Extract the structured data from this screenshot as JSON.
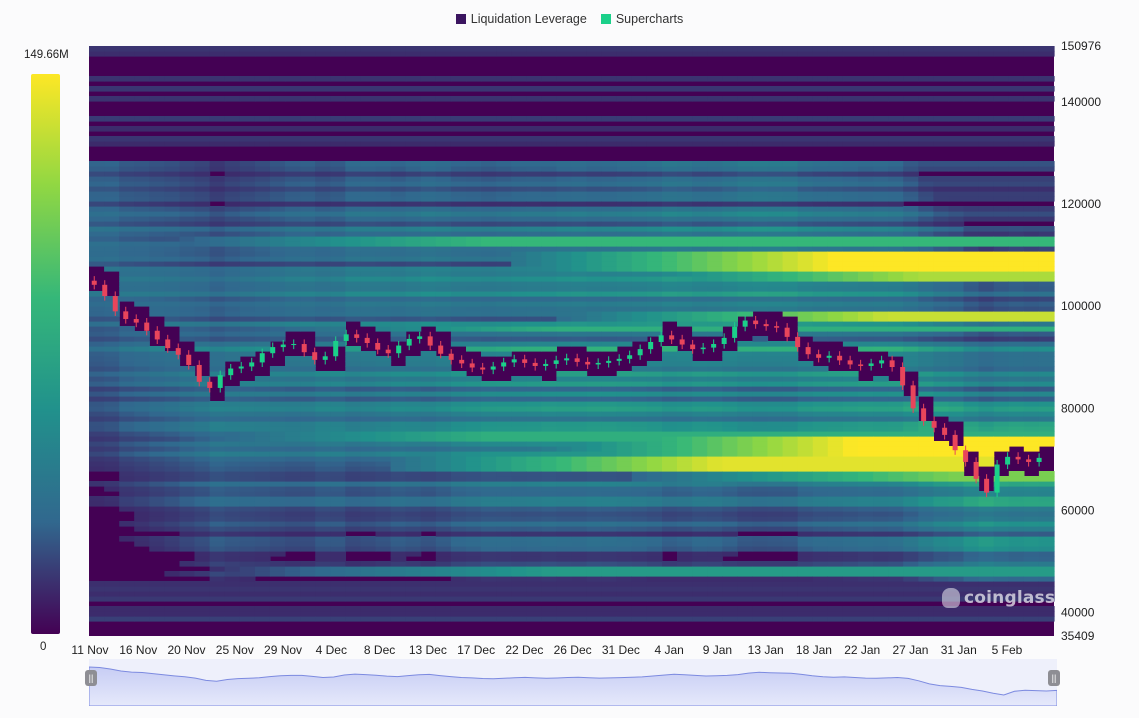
{
  "legend": {
    "items": [
      {
        "label": "Liquidation Leverage",
        "color": "#3b1560"
      },
      {
        "label": "Supercharts",
        "color": "#1bd08a"
      }
    ]
  },
  "colorbar": {
    "max_label": "149.66M",
    "min_label": "0",
    "colors": [
      "#440154",
      "#31688e",
      "#21918c",
      "#35b779",
      "#90d743",
      "#fde725"
    ]
  },
  "watermark": {
    "text": "coinglass",
    "icon": "coinglass-logo-icon"
  },
  "navigator": {
    "left_handle_icon": "pause-grip-icon",
    "right_handle_icon": "pause-grip-icon"
  },
  "chart_data": {
    "type": "heatmap",
    "title": "",
    "ylim": [
      35409,
      150976
    ],
    "y_ticks": [
      "150976",
      "140000",
      "120000",
      "100000",
      "80000",
      "60000",
      "40000",
      "35409"
    ],
    "x_ticks": [
      "11 Nov",
      "16 Nov",
      "20 Nov",
      "25 Nov",
      "29 Nov",
      "4 Dec",
      "8 Dec",
      "13 Dec",
      "17 Dec",
      "22 Dec",
      "26 Dec",
      "31 Dec",
      "4 Jan",
      "9 Jan",
      "13 Jan",
      "18 Jan",
      "22 Jan",
      "27 Jan",
      "31 Jan",
      "5 Feb"
    ],
    "colorbar_range": [
      0,
      149.66
    ],
    "colorbar_unit": "M",
    "price_series": [
      105000,
      104200,
      102000,
      99000,
      97500,
      96800,
      95200,
      93500,
      91800,
      90500,
      88500,
      85200,
      84000,
      86500,
      87800,
      88200,
      89000,
      90800,
      92000,
      92500,
      92600,
      91000,
      89500,
      90200,
      93200,
      94500,
      93800,
      92800,
      91500,
      90800,
      92300,
      93600,
      94100,
      92300,
      90700,
      89500,
      88800,
      88000,
      87600,
      88200,
      89000,
      89600,
      88900,
      88300,
      88700,
      89400,
      89800,
      89100,
      88600,
      88900,
      89300,
      89700,
      90400,
      91600,
      93000,
      94300,
      93500,
      92500,
      91600,
      91900,
      92600,
      93800,
      96000,
      97200,
      96500,
      96100,
      95800,
      94000,
      92000,
      90600,
      89900,
      90300,
      89400,
      88600,
      88300,
      88800,
      89400,
      88100,
      84500,
      80000,
      77500,
      76200,
      74800,
      71800,
      69500,
      66200,
      63500,
      69000,
      70500,
      70000,
      69500,
      70300
    ]
  }
}
